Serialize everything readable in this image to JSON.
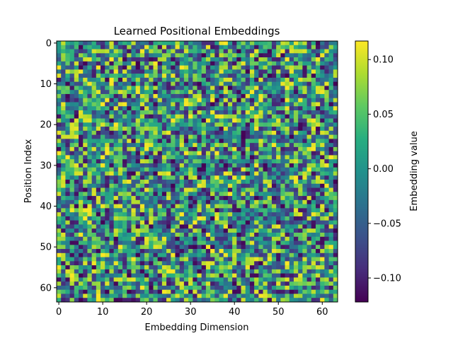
{
  "chart_data": {
    "type": "heatmap",
    "title": "Learned Positional Embeddings",
    "xlabel": "Embedding Dimension",
    "ylabel": "Position Index",
    "rows": 64,
    "cols": 64,
    "xlim": [
      -0.5,
      63.5
    ],
    "ylim": [
      63.5,
      -0.5
    ],
    "x_ticks": [
      0,
      10,
      20,
      30,
      40,
      50,
      60
    ],
    "y_ticks": [
      0,
      10,
      20,
      30,
      40,
      50,
      60
    ],
    "colormap": "viridis",
    "value_range": [
      -0.122,
      0.117
    ],
    "value_distribution": "random, approximately uniform, mean ~0",
    "colorbar": {
      "label": "Embedding value",
      "ticks": [
        0.1,
        0.05,
        0.0,
        -0.05,
        -0.1
      ],
      "tick_labels": [
        "0.10",
        "0.05",
        "0.00",
        "−0.05",
        "−0.10"
      ]
    }
  }
}
